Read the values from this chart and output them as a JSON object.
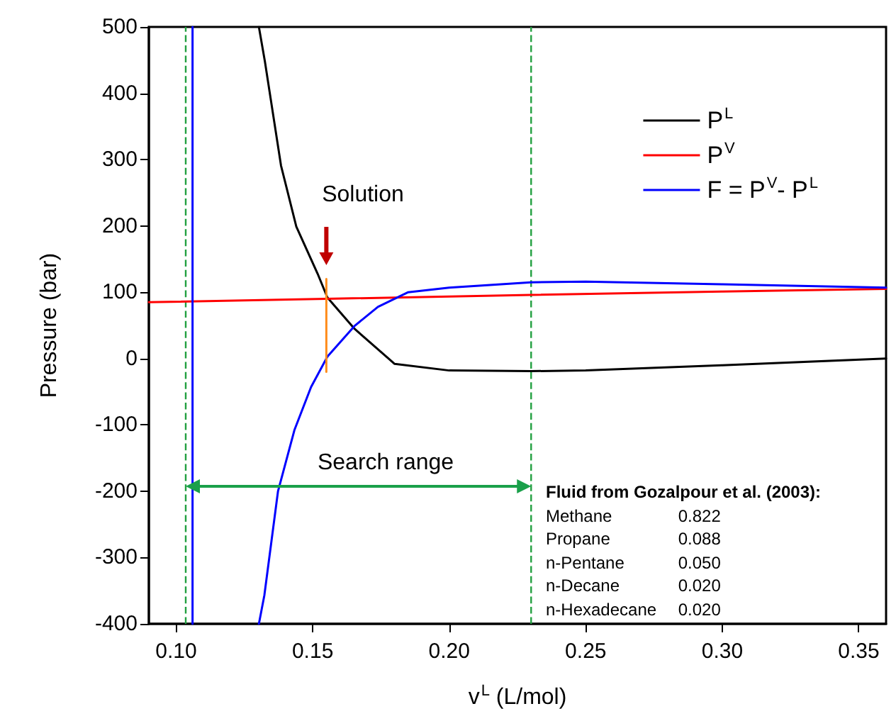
{
  "chart_data": {
    "type": "line",
    "xlabel": "v$^{L}$ (L/mol)",
    "ylabel": "Pressure (bar)",
    "xlim": [
      0.09,
      0.36
    ],
    "xticks": [
      {
        "value": 0.1,
        "label": "0.10"
      },
      {
        "value": 0.15,
        "label": "0.15"
      },
      {
        "value": 0.2,
        "label": "0.20"
      },
      {
        "value": 0.25,
        "label": "0.25"
      },
      {
        "value": 0.3,
        "label": "0.30"
      },
      {
        "value": 0.35,
        "label": "0.35"
      }
    ],
    "ylim": [
      -400,
      500
    ],
    "yticks": [
      -400,
      -300,
      -200,
      -100,
      0,
      100,
      200,
      300,
      400,
      500
    ],
    "grid": false,
    "legend": "top right",
    "line_style": "solid",
    "marker": "none",
    "series": [
      {
        "name": "P$^{L}$",
        "color": "#000000",
        "x": [
          0.1303,
          0.1325,
          0.1384,
          0.144,
          0.1518,
          0.1554,
          0.1653,
          0.18,
          0.2,
          0.23,
          0.25,
          0.3,
          0.36
        ],
        "values": [
          500,
          448,
          291,
          199,
          128,
          92,
          45,
          -8,
          -18,
          -19,
          -18,
          -10,
          0
        ]
      },
      {
        "name": "P$^{V}$",
        "color": "#ff0000",
        "x": [
          0.09,
          0.155,
          0.23,
          0.3,
          0.36
        ],
        "values": [
          85,
          90,
          96,
          101,
          105
        ]
      },
      {
        "name": "F = P$^{V}$- P$^{L}$",
        "color": "#0000ff",
        "x": [
          0.1303,
          0.1323,
          0.1373,
          0.1433,
          0.1494,
          0.1554,
          0.1653,
          0.1739,
          0.185,
          0.2,
          0.23,
          0.25,
          0.3,
          0.36
        ],
        "values": [
          -400,
          -357,
          -200,
          -108,
          -43,
          3,
          49,
          78,
          100,
          107,
          115,
          116,
          112,
          107
        ]
      },
      {
        "color": "#0000ff",
        "x": [
          0.106,
          0.106
        ],
        "values": [
          -400,
          500
        ]
      },
      {
        "color": "#ff8c1a",
        "x": [
          0.155,
          0.155
        ],
        "values": [
          120,
          -20
        ]
      }
    ],
    "ref_lines": [
      {
        "axis": "x",
        "value": 0.1035,
        "color": "#22a040",
        "line_style": "dashed"
      },
      {
        "axis": "x",
        "value": 0.23,
        "color": "#22a040",
        "line_style": "dashed"
      }
    ],
    "annotations": [
      "Solution",
      "Search range",
      "Fluid from Gozalpour et al. (2003):",
      "Methane\t0.822",
      "Propane\t0.088",
      "n-Pentane\t0.050",
      "n-Decane\t0.020",
      "n-Hexadecane\t0.020"
    ]
  }
}
